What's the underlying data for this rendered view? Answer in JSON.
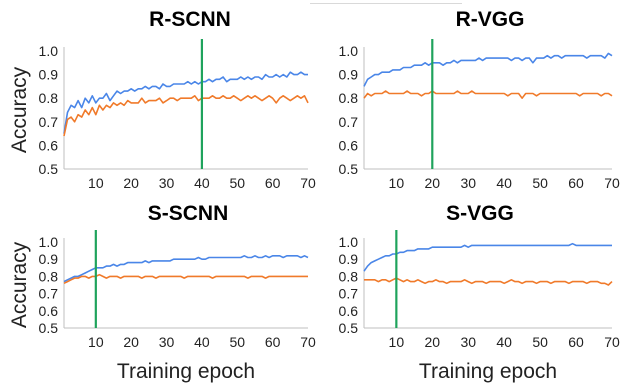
{
  "figure": {
    "ylabel": "Accuracy",
    "xlabel": "Training epoch",
    "colors": {
      "series_a": "#4a86e8",
      "series_b": "#f07a2a",
      "marker": "#1fa35c"
    }
  },
  "chart_data": [
    {
      "type": "line",
      "title": "R-SCNN",
      "ylim": [
        0.5,
        1.0
      ],
      "xlim": [
        1,
        70
      ],
      "yticks": [
        0.5,
        0.6,
        0.7,
        0.8,
        0.9,
        1.0
      ],
      "xticks": [
        10,
        20,
        30,
        40,
        50,
        60,
        70
      ],
      "ylabel": "Accuracy",
      "xlabel": "",
      "vline": 40,
      "series": [
        {
          "values": [
            0.65,
            0.74,
            0.77,
            0.76,
            0.79,
            0.76,
            0.8,
            0.78,
            0.81,
            0.78,
            0.8,
            0.8,
            0.82,
            0.79,
            0.81,
            0.83,
            0.82,
            0.83,
            0.83,
            0.84,
            0.83,
            0.84,
            0.84,
            0.85,
            0.84,
            0.85,
            0.85,
            0.84,
            0.86,
            0.85,
            0.85,
            0.86,
            0.86,
            0.86,
            0.86,
            0.87,
            0.86,
            0.87,
            0.86,
            0.87,
            0.87,
            0.88,
            0.87,
            0.88,
            0.88,
            0.89,
            0.87,
            0.88,
            0.88,
            0.88,
            0.89,
            0.88,
            0.89,
            0.88,
            0.89,
            0.89,
            0.88,
            0.9,
            0.89,
            0.89,
            0.9,
            0.89,
            0.9,
            0.89,
            0.91,
            0.9,
            0.9,
            0.91,
            0.9,
            0.9
          ]
        },
        {
          "values": [
            0.64,
            0.71,
            0.72,
            0.7,
            0.73,
            0.72,
            0.75,
            0.73,
            0.76,
            0.73,
            0.77,
            0.75,
            0.77,
            0.76,
            0.78,
            0.77,
            0.78,
            0.77,
            0.79,
            0.78,
            0.78,
            0.78,
            0.8,
            0.78,
            0.79,
            0.79,
            0.79,
            0.8,
            0.78,
            0.79,
            0.8,
            0.8,
            0.79,
            0.8,
            0.8,
            0.8,
            0.8,
            0.81,
            0.79,
            0.8,
            0.8,
            0.8,
            0.81,
            0.8,
            0.8,
            0.81,
            0.8,
            0.8,
            0.81,
            0.8,
            0.79,
            0.8,
            0.81,
            0.8,
            0.81,
            0.8,
            0.79,
            0.8,
            0.81,
            0.8,
            0.78,
            0.8,
            0.81,
            0.8,
            0.79,
            0.8,
            0.81,
            0.8,
            0.81,
            0.78
          ]
        }
      ]
    },
    {
      "type": "line",
      "title": "R-VGG",
      "ylim": [
        0.5,
        1.0
      ],
      "xlim": [
        1,
        70
      ],
      "yticks": [
        0.5,
        0.6,
        0.7,
        0.8,
        0.9,
        1.0
      ],
      "xticks": [
        10,
        20,
        30,
        40,
        50,
        60,
        70
      ],
      "ylabel": "",
      "xlabel": "",
      "vline": 20,
      "series": [
        {
          "values": [
            0.85,
            0.88,
            0.89,
            0.9,
            0.9,
            0.91,
            0.91,
            0.91,
            0.92,
            0.92,
            0.92,
            0.93,
            0.93,
            0.93,
            0.94,
            0.94,
            0.94,
            0.95,
            0.94,
            0.95,
            0.95,
            0.95,
            0.94,
            0.95,
            0.95,
            0.96,
            0.95,
            0.96,
            0.96,
            0.96,
            0.96,
            0.96,
            0.97,
            0.96,
            0.97,
            0.97,
            0.97,
            0.97,
            0.97,
            0.97,
            0.97,
            0.96,
            0.97,
            0.97,
            0.96,
            0.97,
            0.97,
            0.95,
            0.97,
            0.97,
            0.97,
            0.98,
            0.97,
            0.98,
            0.98,
            0.97,
            0.98,
            0.98,
            0.98,
            0.98,
            0.98,
            0.98,
            0.97,
            0.98,
            0.98,
            0.98,
            0.98,
            0.97,
            0.99,
            0.98
          ]
        },
        {
          "values": [
            0.8,
            0.82,
            0.81,
            0.82,
            0.82,
            0.82,
            0.83,
            0.82,
            0.82,
            0.82,
            0.82,
            0.82,
            0.83,
            0.82,
            0.82,
            0.82,
            0.81,
            0.82,
            0.82,
            0.83,
            0.82,
            0.82,
            0.82,
            0.82,
            0.82,
            0.82,
            0.83,
            0.82,
            0.82,
            0.82,
            0.83,
            0.82,
            0.82,
            0.82,
            0.82,
            0.82,
            0.82,
            0.82,
            0.82,
            0.82,
            0.81,
            0.82,
            0.82,
            0.82,
            0.8,
            0.82,
            0.82,
            0.82,
            0.81,
            0.82,
            0.82,
            0.82,
            0.82,
            0.82,
            0.82,
            0.82,
            0.82,
            0.82,
            0.82,
            0.82,
            0.81,
            0.82,
            0.82,
            0.82,
            0.82,
            0.82,
            0.81,
            0.82,
            0.82,
            0.81
          ]
        }
      ]
    },
    {
      "type": "line",
      "title": "S-SCNN",
      "ylim": [
        0.5,
        1.0
      ],
      "xlim": [
        1,
        70
      ],
      "yticks": [
        0.5,
        0.6,
        0.7,
        0.8,
        0.9,
        1.0
      ],
      "xticks": [
        10,
        20,
        30,
        40,
        50,
        60,
        70
      ],
      "ylabel": "Accuracy",
      "xlabel": "Training epoch",
      "vline": 10,
      "series": [
        {
          "values": [
            0.77,
            0.78,
            0.79,
            0.8,
            0.8,
            0.81,
            0.82,
            0.83,
            0.84,
            0.85,
            0.85,
            0.85,
            0.86,
            0.86,
            0.87,
            0.86,
            0.87,
            0.87,
            0.88,
            0.88,
            0.88,
            0.88,
            0.88,
            0.89,
            0.88,
            0.89,
            0.89,
            0.89,
            0.89,
            0.89,
            0.89,
            0.9,
            0.9,
            0.9,
            0.9,
            0.9,
            0.9,
            0.9,
            0.91,
            0.9,
            0.9,
            0.91,
            0.91,
            0.91,
            0.91,
            0.91,
            0.91,
            0.91,
            0.91,
            0.91,
            0.91,
            0.92,
            0.91,
            0.91,
            0.92,
            0.91,
            0.91,
            0.92,
            0.91,
            0.92,
            0.92,
            0.92,
            0.91,
            0.92,
            0.92,
            0.92,
            0.92,
            0.91,
            0.92,
            0.91
          ]
        },
        {
          "values": [
            0.76,
            0.77,
            0.78,
            0.79,
            0.79,
            0.8,
            0.8,
            0.79,
            0.8,
            0.8,
            0.81,
            0.8,
            0.79,
            0.8,
            0.8,
            0.8,
            0.79,
            0.8,
            0.8,
            0.8,
            0.8,
            0.8,
            0.79,
            0.8,
            0.8,
            0.8,
            0.79,
            0.8,
            0.8,
            0.8,
            0.8,
            0.8,
            0.8,
            0.8,
            0.79,
            0.8,
            0.8,
            0.8,
            0.8,
            0.8,
            0.8,
            0.8,
            0.79,
            0.8,
            0.8,
            0.8,
            0.8,
            0.8,
            0.8,
            0.8,
            0.8,
            0.8,
            0.79,
            0.8,
            0.8,
            0.8,
            0.8,
            0.79,
            0.8,
            0.8,
            0.8,
            0.8,
            0.8,
            0.8,
            0.8,
            0.8,
            0.8,
            0.8,
            0.8,
            0.8
          ]
        }
      ]
    },
    {
      "type": "line",
      "title": "S-VGG",
      "ylim": [
        0.5,
        1.0
      ],
      "xlim": [
        1,
        70
      ],
      "yticks": [
        0.5,
        0.6,
        0.7,
        0.8,
        0.9,
        1.0
      ],
      "xticks": [
        10,
        20,
        30,
        40,
        50,
        60,
        70
      ],
      "ylabel": "",
      "xlabel": "Training epoch",
      "vline": 10,
      "series": [
        {
          "values": [
            0.83,
            0.86,
            0.88,
            0.89,
            0.9,
            0.91,
            0.92,
            0.92,
            0.93,
            0.93,
            0.94,
            0.94,
            0.95,
            0.95,
            0.95,
            0.96,
            0.96,
            0.96,
            0.96,
            0.97,
            0.97,
            0.97,
            0.97,
            0.97,
            0.97,
            0.97,
            0.97,
            0.97,
            0.98,
            0.97,
            0.98,
            0.98,
            0.98,
            0.98,
            0.98,
            0.98,
            0.98,
            0.98,
            0.98,
            0.98,
            0.98,
            0.98,
            0.98,
            0.98,
            0.98,
            0.98,
            0.98,
            0.98,
            0.98,
            0.98,
            0.98,
            0.98,
            0.98,
            0.98,
            0.98,
            0.98,
            0.98,
            0.98,
            0.99,
            0.98,
            0.98,
            0.98,
            0.98,
            0.98,
            0.98,
            0.98,
            0.98,
            0.98,
            0.98,
            0.98
          ]
        },
        {
          "values": [
            0.78,
            0.78,
            0.78,
            0.78,
            0.77,
            0.78,
            0.78,
            0.77,
            0.78,
            0.79,
            0.78,
            0.77,
            0.78,
            0.77,
            0.77,
            0.78,
            0.77,
            0.76,
            0.77,
            0.77,
            0.78,
            0.77,
            0.77,
            0.76,
            0.77,
            0.77,
            0.77,
            0.77,
            0.78,
            0.77,
            0.76,
            0.77,
            0.77,
            0.77,
            0.76,
            0.77,
            0.77,
            0.77,
            0.77,
            0.76,
            0.77,
            0.78,
            0.77,
            0.77,
            0.76,
            0.77,
            0.77,
            0.77,
            0.76,
            0.77,
            0.77,
            0.77,
            0.76,
            0.77,
            0.77,
            0.77,
            0.77,
            0.76,
            0.77,
            0.77,
            0.77,
            0.77,
            0.76,
            0.77,
            0.77,
            0.77,
            0.76,
            0.76,
            0.75,
            0.77
          ]
        }
      ]
    }
  ]
}
